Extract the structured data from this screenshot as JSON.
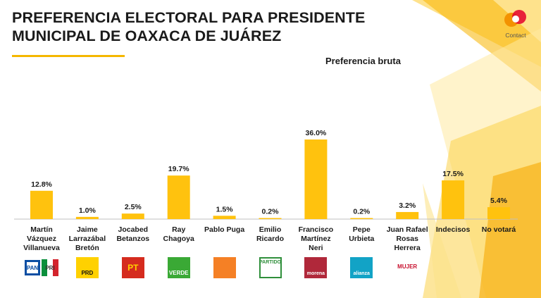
{
  "header": {
    "title_line1": "PREFERENCIA ELECTORAL PARA PRESIDENTE",
    "title_line2": "MUNICIPAL DE OAXACA DE JUÁREZ",
    "subtitle": "Preferencia bruta",
    "brand": "Contact"
  },
  "colors": {
    "bar": "#FFC20E",
    "accent": "#F5B700",
    "text": "#1a1a1a"
  },
  "chart_data": {
    "type": "bar",
    "title": "PREFERENCIA ELECTORAL PARA PRESIDENTE MUNICIPAL DE OAXACA DE JUÁREZ",
    "subtitle": "Preferencia bruta",
    "categories": [
      [
        "Martín",
        "Vázquez",
        "Villanueva"
      ],
      [
        "Jaime",
        "Larrazábal",
        "Bretón"
      ],
      [
        "Jocabed",
        "Betanzos"
      ],
      [
        "Ray",
        "Chagoya"
      ],
      [
        "Pablo Puga"
      ],
      [
        "Emilio",
        "Ricardo"
      ],
      [
        "Francisco",
        "Martínez",
        "Neri"
      ],
      [
        "Pepe",
        "Urbieta"
      ],
      [
        "Juan Rafael",
        "Rosas",
        "Herrera"
      ],
      [
        "Indecisos"
      ],
      [
        "No votará"
      ]
    ],
    "values": [
      12.8,
      1.0,
      2.5,
      19.7,
      1.5,
      0.2,
      36.0,
      0.2,
      3.2,
      17.5,
      5.4
    ],
    "value_labels": [
      "12.8%",
      "1.0%",
      "2.5%",
      "19.7%",
      "1.5%",
      "0.2%",
      "36.0%",
      "0.2%",
      "3.2%",
      "17.5%",
      "5.4%"
    ],
    "ylim": [
      0,
      36
    ],
    "grid": false,
    "legend": "none"
  },
  "party_logos": [
    {
      "name": "pan-pri-logo",
      "label": "PAN",
      "label2": "PRI",
      "color": "#0a4ea3",
      "color2": "#d3232c"
    },
    {
      "name": "prd-logo",
      "label": "PRD",
      "color": "#ffd100"
    },
    {
      "name": "pt-logo",
      "label": "PT",
      "color": "#d52b1e"
    },
    {
      "name": "verde-logo",
      "label": "VERDE",
      "color": "#3aa935"
    },
    {
      "name": "movimiento-ciudadano-logo",
      "label": "",
      "color": "#f58025"
    },
    {
      "name": "partido-unidad-popular-logo",
      "label": "PARTIDO",
      "color": "#2f8f3b"
    },
    {
      "name": "morena-logo",
      "label": "morena",
      "color": "#b0283a"
    },
    {
      "name": "nueva-alianza-logo",
      "label": "alianza",
      "color": "#12a3c6"
    },
    {
      "name": "mujer-logo",
      "label": "MUJER",
      "color": "#c8102e"
    }
  ]
}
